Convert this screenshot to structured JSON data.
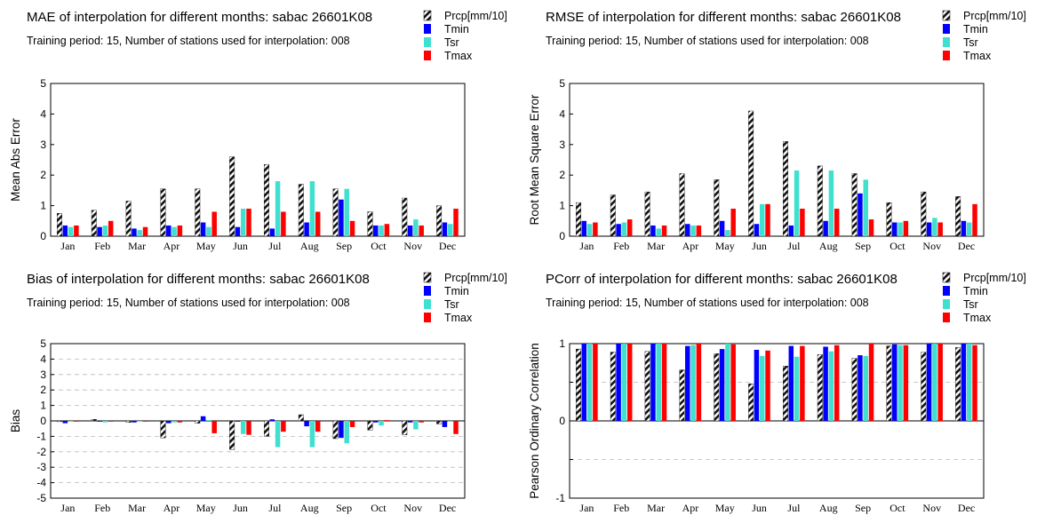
{
  "colors": {
    "Prcp": "#111111",
    "Tmin": "#0000ff",
    "Tsr": "#40e0d0",
    "Tmax": "#ff0000"
  },
  "chart_data": [
    {
      "type": "bar",
      "title": "MAE of interpolation for different months: sabac  26601K08",
      "subtitle": "Training period: 15, Number of stations used for interpolation: 008",
      "xlabel": "",
      "ylabel": "Mean Abs Error",
      "ylim": [
        0,
        5
      ],
      "yticks": [
        "0",
        "1",
        "2",
        "3",
        "4",
        "5"
      ],
      "grid": false,
      "legend": "top-right",
      "categories": [
        "Jan",
        "Feb",
        "Mar",
        "Apr",
        "May",
        "Jun",
        "Jul",
        "Aug",
        "Sep",
        "Oct",
        "Nov",
        "Dec"
      ],
      "series": [
        {
          "name": "Prcp[mm/10]",
          "values": [
            0.75,
            0.85,
            1.15,
            1.55,
            1.55,
            2.6,
            2.35,
            1.7,
            1.55,
            0.8,
            1.25,
            1.0
          ]
        },
        {
          "name": "Tmin",
          "values": [
            0.35,
            0.3,
            0.25,
            0.35,
            0.45,
            0.3,
            0.25,
            0.45,
            1.2,
            0.35,
            0.35,
            0.45
          ]
        },
        {
          "name": "Tsr",
          "values": [
            0.3,
            0.35,
            0.2,
            0.3,
            0.3,
            0.9,
            1.8,
            1.8,
            1.55,
            0.35,
            0.55,
            0.4
          ]
        },
        {
          "name": "Tmax",
          "values": [
            0.35,
            0.5,
            0.3,
            0.35,
            0.8,
            0.9,
            0.8,
            0.8,
            0.5,
            0.4,
            0.35,
            0.9
          ]
        }
      ]
    },
    {
      "type": "bar",
      "title": "RMSE of interpolation for different months: sabac  26601K08",
      "subtitle": "Training period: 15, Number of stations used for interpolation: 008",
      "xlabel": "",
      "ylabel": "Root Mean Square Error",
      "ylim": [
        0,
        5
      ],
      "yticks": [
        "0",
        "1",
        "2",
        "3",
        "4",
        "5"
      ],
      "grid": false,
      "legend": "top-right",
      "categories": [
        "Jan",
        "Feb",
        "Mar",
        "Apr",
        "May",
        "Jun",
        "Jul",
        "Aug",
        "Sep",
        "Oct",
        "Nov",
        "Dec"
      ],
      "series": [
        {
          "name": "Prcp[mm/10]",
          "values": [
            1.1,
            1.35,
            1.45,
            2.05,
            1.85,
            4.1,
            3.1,
            2.3,
            2.05,
            1.1,
            1.45,
            1.3
          ]
        },
        {
          "name": "Tmin",
          "values": [
            0.5,
            0.4,
            0.35,
            0.4,
            0.5,
            0.4,
            0.35,
            0.5,
            1.4,
            0.45,
            0.45,
            0.5
          ]
        },
        {
          "name": "Tsr",
          "values": [
            0.4,
            0.45,
            0.25,
            0.35,
            0.2,
            1.05,
            2.15,
            2.15,
            1.85,
            0.45,
            0.6,
            0.45
          ]
        },
        {
          "name": "Tmax",
          "values": [
            0.45,
            0.55,
            0.35,
            0.35,
            0.9,
            1.05,
            0.9,
            0.9,
            0.55,
            0.5,
            0.45,
            1.05
          ]
        }
      ]
    },
    {
      "type": "bar",
      "title": "Bias of interpolation for different months: sabac  26601K08",
      "subtitle": "Training period: 15, Number of stations used for interpolation: 008",
      "xlabel": "",
      "ylabel": "Bias",
      "ylim": [
        -5,
        5
      ],
      "yticks": [
        "-5",
        "-4",
        "-3",
        "-2",
        "-1",
        "0",
        "1",
        "2",
        "3",
        "4",
        "5"
      ],
      "grid": true,
      "legend": "top-right",
      "categories": [
        "Jan",
        "Feb",
        "Mar",
        "Apr",
        "May",
        "Jun",
        "Jul",
        "Aug",
        "Sep",
        "Oct",
        "Nov",
        "Dec"
      ],
      "series": [
        {
          "name": "Prcp[mm/10]",
          "values": [
            -0.05,
            0.1,
            -0.1,
            -1.1,
            -0.15,
            -1.85,
            -1.0,
            0.4,
            -1.15,
            -0.6,
            -0.9,
            -0.2
          ]
        },
        {
          "name": "Tmin",
          "values": [
            -0.15,
            -0.05,
            -0.1,
            -0.15,
            0.3,
            -0.05,
            0.1,
            -0.35,
            -1.1,
            -0.1,
            -0.1,
            -0.4
          ]
        },
        {
          "name": "Tsr",
          "values": [
            -0.05,
            -0.1,
            -0.05,
            -0.1,
            0.05,
            -0.85,
            -1.7,
            -1.7,
            -1.45,
            -0.3,
            -0.55,
            -0.05
          ]
        },
        {
          "name": "Tmax",
          "values": [
            -0.05,
            -0.05,
            -0.05,
            -0.1,
            -0.8,
            -0.9,
            -0.7,
            -0.7,
            -0.4,
            0.05,
            -0.1,
            -0.85
          ]
        }
      ]
    },
    {
      "type": "bar",
      "title": "PCorr of interpolation for different months: sabac  26601K08",
      "subtitle": "Training period: 15, Number of stations used for interpolation: 008",
      "xlabel": "",
      "ylabel": "Pearson Ordinary Correlation",
      "ylim": [
        -1,
        1
      ],
      "yticks": [
        "-1",
        "",
        "0",
        "",
        "1"
      ],
      "grid": true,
      "legend": "top-right",
      "categories": [
        "Jan",
        "Feb",
        "Mar",
        "Apr",
        "May",
        "Jun",
        "Jul",
        "Aug",
        "Sep",
        "Oct",
        "Nov",
        "Dec"
      ],
      "series": [
        {
          "name": "Prcp[mm/10]",
          "values": [
            0.93,
            0.89,
            0.9,
            0.66,
            0.87,
            0.48,
            0.71,
            0.86,
            0.81,
            0.97,
            0.89,
            0.95
          ]
        },
        {
          "name": "Tmin",
          "values": [
            1.0,
            1.0,
            1.0,
            0.97,
            0.93,
            0.92,
            0.97,
            0.96,
            0.85,
            0.99,
            1.0,
            1.0
          ]
        },
        {
          "name": "Tsr",
          "values": [
            1.0,
            1.0,
            1.0,
            0.98,
            1.0,
            0.84,
            0.83,
            0.9,
            0.84,
            0.98,
            1.0,
            1.0
          ]
        },
        {
          "name": "Tmax",
          "values": [
            1.0,
            1.0,
            1.0,
            1.0,
            0.99,
            0.91,
            0.97,
            0.98,
            1.0,
            0.98,
            1.0,
            0.98
          ]
        }
      ]
    }
  ]
}
